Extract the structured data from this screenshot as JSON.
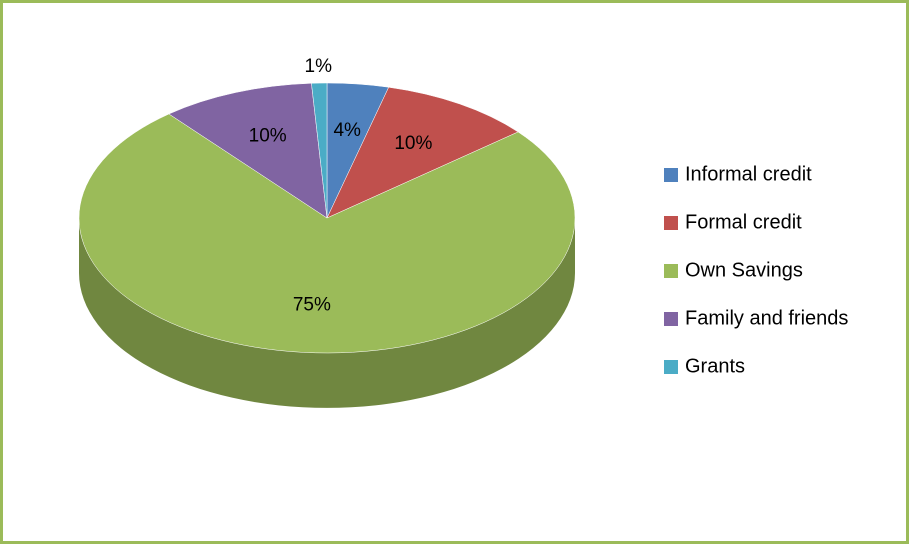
{
  "chart_data": {
    "type": "pie",
    "categories": [
      "Informal credit",
      "Formal credit",
      "Own Savings",
      "Family and friends",
      "Grants"
    ],
    "values": [
      4,
      10,
      75,
      10,
      1
    ],
    "value_labels": [
      "4%",
      "10%",
      "75%",
      "10%",
      "1%"
    ],
    "colors": [
      "#4f81bd",
      "#c0504d",
      "#9bbb59",
      "#8064a2",
      "#4bacc6"
    ],
    "legend": "right"
  }
}
